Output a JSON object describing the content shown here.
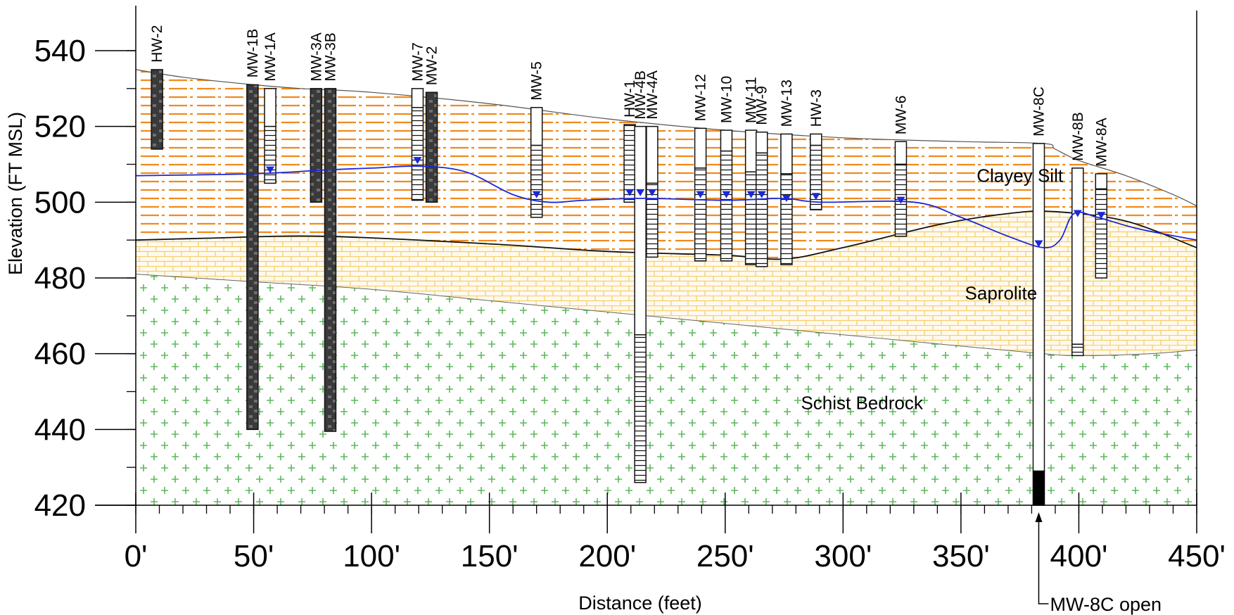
{
  "figure": {
    "ylabel": "Elevation (FT MSL)",
    "xlabel": "Distance (feet)",
    "y_ticks": [
      {
        "value": 540,
        "label": "540"
      },
      {
        "value": 520,
        "label": "520"
      },
      {
        "value": 500,
        "label": "500"
      },
      {
        "value": 480,
        "label": "480"
      },
      {
        "value": 460,
        "label": "460"
      },
      {
        "value": 440,
        "label": "440"
      },
      {
        "value": 420,
        "label": "420"
      }
    ],
    "x_ticks": [
      {
        "value": 0,
        "label": "0'"
      },
      {
        "value": 50,
        "label": "50'"
      },
      {
        "value": 100,
        "label": "100'"
      },
      {
        "value": 150,
        "label": "150'"
      },
      {
        "value": 200,
        "label": "200'"
      },
      {
        "value": 250,
        "label": "250'"
      },
      {
        "value": 300,
        "label": "300'"
      },
      {
        "value": 350,
        "label": "350'"
      },
      {
        "value": 400,
        "label": "400'"
      },
      {
        "value": 450,
        "label": "450'"
      }
    ],
    "x_range": [
      0,
      450
    ],
    "y_range": [
      420,
      540
    ],
    "units": [
      {
        "name": "Clayey Silt",
        "label": "Clayey Silt",
        "color": "#f08a1c",
        "label_x": 375,
        "label_y": 507
      },
      {
        "name": "Saprolite",
        "label": "Saprolite",
        "color": "#f5cf6a",
        "label_x": 367,
        "label_y": 476
      },
      {
        "name": "Schist Bedrock",
        "label": "Schist Bedrock",
        "color": "#5cb85c",
        "label_x": 308,
        "label_y": 447
      }
    ],
    "surfaces": {
      "ground": [
        [
          0,
          535
        ],
        [
          20,
          533
        ],
        [
          50,
          531
        ],
        [
          70,
          530
        ],
        [
          100,
          529
        ],
        [
          150,
          526
        ],
        [
          200,
          522
        ],
        [
          250,
          519
        ],
        [
          300,
          517
        ],
        [
          350,
          516
        ],
        [
          385,
          515.5
        ],
        [
          390,
          514
        ],
        [
          400,
          511
        ],
        [
          420,
          507
        ],
        [
          440,
          502
        ],
        [
          450,
          499
        ]
      ],
      "silt_base": [
        [
          0,
          490
        ],
        [
          30,
          490.5
        ],
        [
          80,
          491
        ],
        [
          150,
          489
        ],
        [
          200,
          487
        ],
        [
          250,
          486
        ],
        [
          275,
          485
        ],
        [
          300,
          488
        ],
        [
          340,
          494
        ],
        [
          370,
          497
        ],
        [
          390,
          497.5
        ],
        [
          420,
          495
        ],
        [
          450,
          488
        ]
      ],
      "saprolite_base": [
        [
          0,
          481
        ],
        [
          50,
          479
        ],
        [
          100,
          477
        ],
        [
          150,
          474
        ],
        [
          200,
          471
        ],
        [
          250,
          468
        ],
        [
          300,
          465
        ],
        [
          350,
          462
        ],
        [
          385,
          460
        ],
        [
          400,
          459.5
        ],
        [
          430,
          460
        ],
        [
          450,
          461
        ]
      ],
      "water_table": [
        [
          0,
          507
        ],
        [
          50,
          507.5
        ],
        [
          80,
          508.5
        ],
        [
          100,
          509
        ],
        [
          120,
          509.5
        ],
        [
          140,
          508
        ],
        [
          160,
          502
        ],
        [
          175,
          500
        ],
        [
          190,
          500.5
        ],
        [
          215,
          501
        ],
        [
          250,
          500.5
        ],
        [
          275,
          501
        ],
        [
          290,
          500
        ],
        [
          330,
          500
        ],
        [
          350,
          496
        ],
        [
          370,
          491
        ],
        [
          385,
          488
        ],
        [
          392,
          490
        ],
        [
          398,
          497
        ],
        [
          408,
          496
        ],
        [
          425,
          493
        ],
        [
          450,
          490
        ]
      ]
    },
    "wells": [
      {
        "label": "HW-2",
        "x": 9,
        "top": 535,
        "bottom": 514,
        "type": "rock",
        "screen_top": 535
      },
      {
        "label": "MW-1B",
        "x": 49.5,
        "top": 531,
        "bottom": 440,
        "type": "rock",
        "screen_top": 531
      },
      {
        "label": "MW-1A",
        "x": 57,
        "top": 530,
        "bottom": 505,
        "type": "screen",
        "screen_top": 520,
        "wl": 508.5
      },
      {
        "label": "MW-3A",
        "x": 76.5,
        "top": 530,
        "bottom": 500,
        "type": "rock",
        "screen_top": 530
      },
      {
        "label": "MW-3B",
        "x": 82.5,
        "top": 530,
        "bottom": 439.5,
        "type": "rock",
        "screen_top": 530
      },
      {
        "label": "MW-7",
        "x": 119.5,
        "top": 530,
        "bottom": 500.5,
        "type": "screen",
        "screen_top": 525,
        "wl": 511
      },
      {
        "label": "MW-2",
        "x": 125.5,
        "top": 529,
        "bottom": 500,
        "type": "rock",
        "screen_top": 529
      },
      {
        "label": "MW-5",
        "x": 170,
        "top": 525,
        "bottom": 496,
        "type": "screen",
        "screen_top": 515,
        "wl": 502
      },
      {
        "label": "HW-1",
        "x": 209.5,
        "top": 520.5,
        "bottom": 500,
        "type": "screen",
        "screen_top": 520.5,
        "wl": 502.5
      },
      {
        "label": "MW-4B",
        "x": 214,
        "top": 520,
        "bottom": 426,
        "type": "screen",
        "screen_top": 465,
        "wl": 502.5
      },
      {
        "label": "MW-4A",
        "x": 219,
        "top": 520,
        "bottom": 485.5,
        "type": "screen",
        "screen_top": 505,
        "wl": 502.5
      },
      {
        "label": "MW-12",
        "x": 239.5,
        "top": 519.5,
        "bottom": 484.5,
        "type": "screen",
        "screen_top": 509,
        "wl": 502
      },
      {
        "label": "MW-10",
        "x": 250.5,
        "top": 519,
        "bottom": 484.5,
        "type": "screen",
        "screen_top": 513.5,
        "wl": 502
      },
      {
        "label": "MW-11",
        "x": 261,
        "top": 519,
        "bottom": 483.5,
        "type": "screen",
        "screen_top": 508,
        "wl": 502
      },
      {
        "label": "MW-9",
        "x": 265.5,
        "top": 518.5,
        "bottom": 483,
        "type": "screen",
        "screen_top": 513,
        "wl": 502
      },
      {
        "label": "MW-13",
        "x": 276,
        "top": 518,
        "bottom": 483.5,
        "type": "screen",
        "screen_top": 507.5,
        "wl": 501
      },
      {
        "label": "HW-3",
        "x": 288.5,
        "top": 518,
        "bottom": 498,
        "type": "screen",
        "screen_top": 515,
        "wl": 501.5
      },
      {
        "label": "MW-6",
        "x": 324.5,
        "top": 516,
        "bottom": 491,
        "type": "screen",
        "screen_top": 510,
        "wl": 500.5
      },
      {
        "label": "MW-8C",
        "x": 383,
        "top": 515.5,
        "bottom": 420,
        "type": "openhole",
        "screen_top": 429,
        "wl": 489
      },
      {
        "label": "MW-8B",
        "x": 399.5,
        "top": 509,
        "bottom": 459.5,
        "type": "screen",
        "screen_top": 462.5,
        "wl": 497
      },
      {
        "label": "MW-8A",
        "x": 409.5,
        "top": 507.5,
        "bottom": 480,
        "type": "screen",
        "screen_top": 503.5,
        "wl": 496.5
      }
    ],
    "callout": {
      "label": "MW-8C open",
      "x": 383
    }
  }
}
